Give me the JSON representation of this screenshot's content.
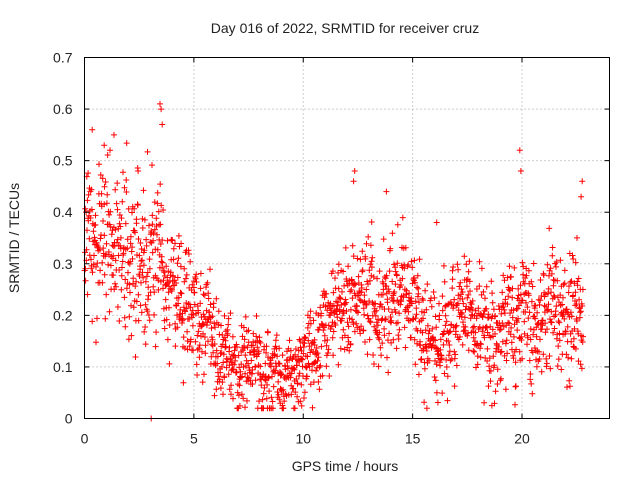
{
  "chart_data": {
    "type": "scatter",
    "title": "Day 016 of 2022, SRMTID for receiver cruz",
    "xlabel": "GPS time / hours",
    "ylabel": "SRMTID / TECUs",
    "xlim": [
      0,
      24
    ],
    "ylim": [
      0,
      0.7
    ],
    "xticks": [
      0,
      5,
      10,
      15,
      20
    ],
    "yticks": [
      0,
      0.1,
      0.2,
      0.3,
      0.4,
      0.5,
      0.6,
      0.7
    ],
    "grid": true,
    "marker": "+",
    "color": "#ff0000",
    "series": [
      {
        "name": "SRMTID",
        "trend": {
          "x": [
            0,
            0.5,
            1,
            1.5,
            2,
            2.5,
            3,
            3.5,
            4,
            4.5,
            5,
            5.5,
            6,
            6.5,
            7,
            7.5,
            8,
            8.5,
            9,
            9.5,
            10,
            10.5,
            11,
            11.5,
            12,
            12.5,
            13,
            13.5,
            14,
            14.5,
            15,
            15.5,
            16,
            16.5,
            17,
            17.5,
            18,
            18.5,
            19,
            19.5,
            20,
            20.5,
            21,
            21.5,
            22,
            22.5,
            22.8
          ],
          "y": [
            0.33,
            0.32,
            0.34,
            0.33,
            0.31,
            0.32,
            0.3,
            0.29,
            0.26,
            0.23,
            0.2,
            0.17,
            0.14,
            0.12,
            0.11,
            0.1,
            0.09,
            0.08,
            0.08,
            0.1,
            0.12,
            0.14,
            0.17,
            0.2,
            0.22,
            0.23,
            0.22,
            0.21,
            0.22,
            0.23,
            0.2,
            0.17,
            0.13,
            0.15,
            0.18,
            0.2,
            0.17,
            0.15,
            0.16,
            0.19,
            0.21,
            0.19,
            0.2,
            0.21,
            0.2,
            0.21,
            0.24
          ]
        },
        "spread": {
          "x": [
            0,
            2,
            3.5,
            4,
            6,
            8,
            9,
            10,
            12,
            14,
            15.5,
            16,
            18,
            20,
            22,
            22.8
          ],
          "y": [
            0.1,
            0.1,
            0.12,
            0.07,
            0.06,
            0.05,
            0.05,
            0.05,
            0.07,
            0.07,
            0.07,
            0.06,
            0.07,
            0.08,
            0.07,
            0.09
          ]
        },
        "points_per_hour": 80,
        "spikes": [
          {
            "x": 0.35,
            "y": 0.56
          },
          {
            "x": 0.9,
            "y": 0.53
          },
          {
            "x": 1.35,
            "y": 0.55
          },
          {
            "x": 2.45,
            "y": 0.48
          },
          {
            "x": 3.05,
            "y": 0.0
          },
          {
            "x": 3.45,
            "y": 0.61
          },
          {
            "x": 3.5,
            "y": 0.6
          },
          {
            "x": 3.55,
            "y": 0.57
          },
          {
            "x": 12.35,
            "y": 0.48
          },
          {
            "x": 12.3,
            "y": 0.46
          },
          {
            "x": 13.8,
            "y": 0.44
          },
          {
            "x": 16.1,
            "y": 0.38
          },
          {
            "x": 19.9,
            "y": 0.52
          },
          {
            "x": 19.95,
            "y": 0.48
          },
          {
            "x": 22.75,
            "y": 0.46
          },
          {
            "x": 22.7,
            "y": 0.43
          }
        ]
      }
    ]
  }
}
